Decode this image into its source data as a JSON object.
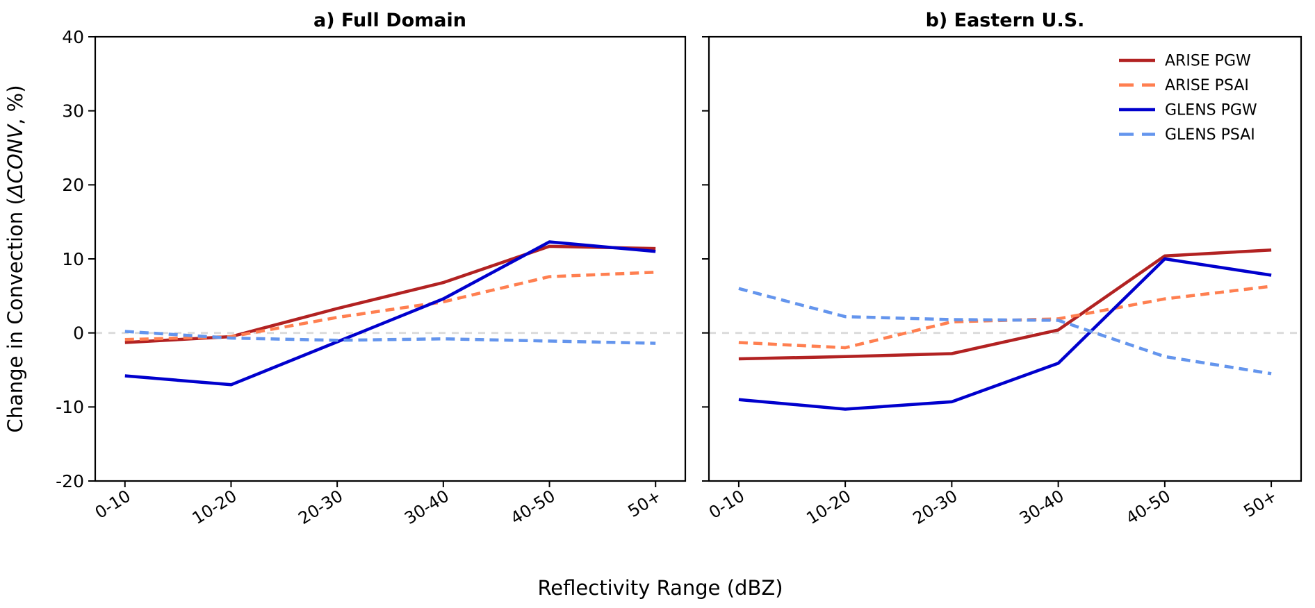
{
  "figure": {
    "title_a": "a) Full Domain",
    "title_b": "b) Eastern U.S.",
    "xlabel": "Reflectivity Range (dBZ)",
    "ylabel_prefix": "Change in Convection (",
    "ylabel_italic": "ΔCONV",
    "ylabel_suffix": ", %)",
    "background": "#ffffff",
    "spine_color": "#000000",
    "zero_line_color": "#dcdcdc"
  },
  "chart_data": [
    {
      "type": "line",
      "title": "a) Full Domain",
      "categories": [
        "0-10",
        "10-20",
        "20-30",
        "30-40",
        "40-50",
        "50+"
      ],
      "xlabel": "Reflectivity Range (dBZ)",
      "ylabel": "Change in Convection (ΔCONV, %)",
      "ylim": [
        -20,
        40
      ],
      "yticks": [
        40,
        30,
        20,
        10,
        0,
        -10,
        -20
      ],
      "zero_line": true,
      "grid": false,
      "series": [
        {
          "name": "ARISE PGW",
          "color": "#B22222",
          "style": "solid",
          "values": [
            -1.3,
            -0.5,
            3.3,
            6.8,
            11.7,
            11.4
          ]
        },
        {
          "name": "ARISE PSAI",
          "color": "#FF7F50",
          "style": "dashed",
          "values": [
            -0.9,
            -0.5,
            2.1,
            4.2,
            7.6,
            8.2
          ]
        },
        {
          "name": "GLENS PGW",
          "color": "#0000CD",
          "style": "solid",
          "values": [
            -5.8,
            -7.0,
            -1.2,
            4.6,
            12.3,
            11.0
          ]
        },
        {
          "name": "GLENS PSAI",
          "color": "#6495ED",
          "style": "dashed",
          "values": [
            0.2,
            -0.7,
            -1.0,
            -0.8,
            -1.1,
            -1.4
          ]
        }
      ]
    },
    {
      "type": "line",
      "title": "b) Eastern U.S.",
      "categories": [
        "0-10",
        "10-20",
        "20-30",
        "30-40",
        "40-50",
        "50+"
      ],
      "xlabel": "Reflectivity Range (dBZ)",
      "ylabel": "Change in Convection (ΔCONV, %)",
      "ylim": [
        -20,
        40
      ],
      "yticks": [
        40,
        30,
        20,
        10,
        0,
        -10,
        -20
      ],
      "zero_line": true,
      "grid": false,
      "legend_position": "upper right",
      "series": [
        {
          "name": "ARISE PGW",
          "color": "#B22222",
          "style": "solid",
          "values": [
            -3.5,
            -3.2,
            -2.8,
            0.4,
            10.4,
            11.2
          ]
        },
        {
          "name": "ARISE PSAI",
          "color": "#FF7F50",
          "style": "dashed",
          "values": [
            -1.3,
            -2.0,
            1.5,
            1.9,
            4.6,
            6.3
          ]
        },
        {
          "name": "GLENS PGW",
          "color": "#0000CD",
          "style": "solid",
          "values": [
            -9.0,
            -10.3,
            -9.3,
            -4.1,
            10.0,
            7.8
          ]
        },
        {
          "name": "GLENS PSAI",
          "color": "#6495ED",
          "style": "dashed",
          "values": [
            6.0,
            2.2,
            1.8,
            1.7,
            -3.2,
            -5.5
          ]
        }
      ]
    }
  ],
  "legend": {
    "entries": [
      {
        "label": "ARISE PGW",
        "color": "#B22222",
        "style": "solid"
      },
      {
        "label": "ARISE PSAI",
        "color": "#FF7F50",
        "style": "dashed"
      },
      {
        "label": "GLENS PGW",
        "color": "#0000CD",
        "style": "solid"
      },
      {
        "label": "GLENS PSAI",
        "color": "#6495ED",
        "style": "dashed"
      }
    ]
  }
}
